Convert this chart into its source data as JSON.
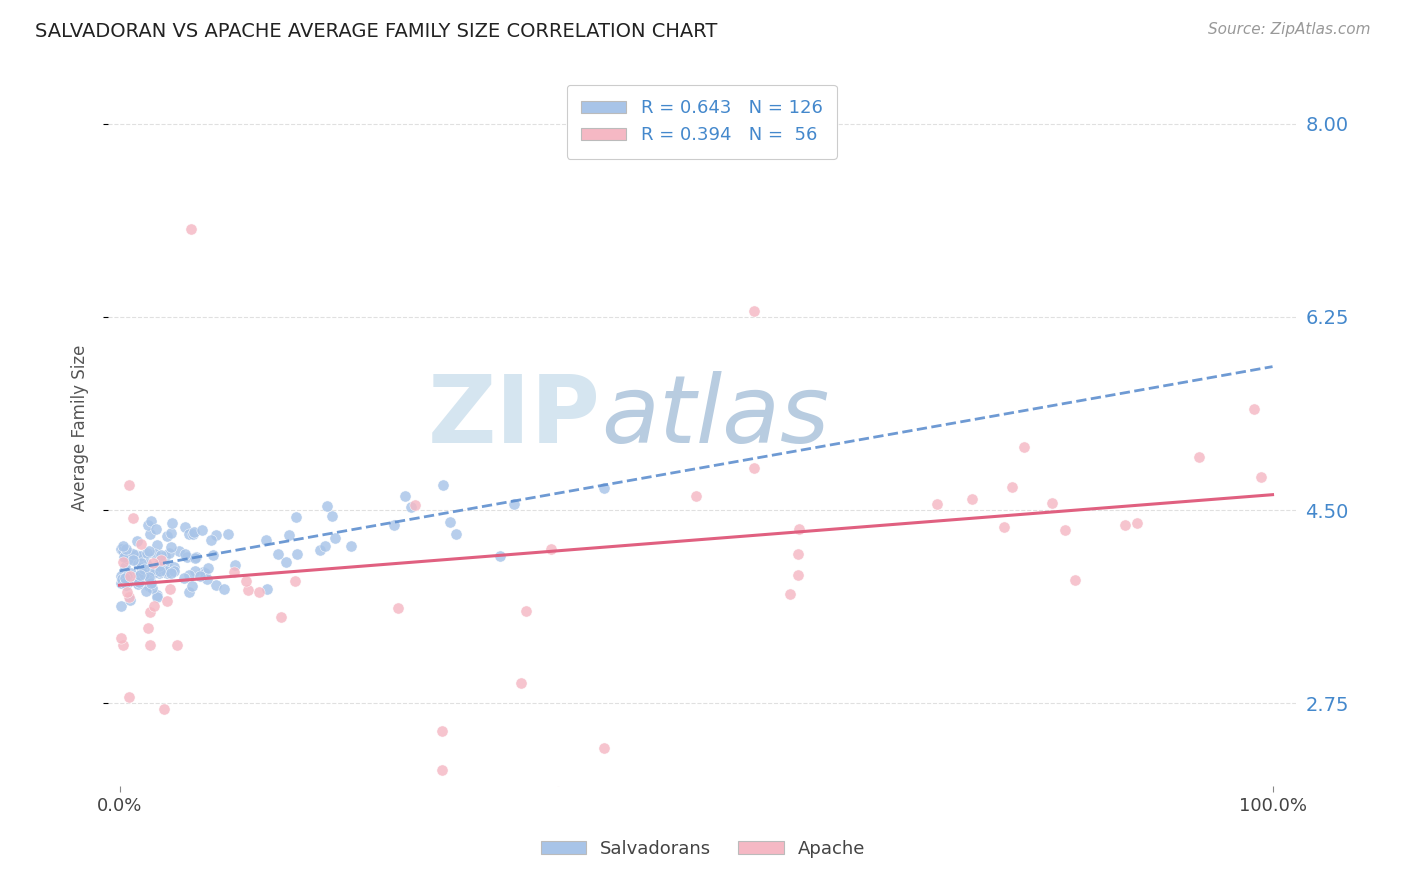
{
  "title": "SALVADORAN VS APACHE AVERAGE FAMILY SIZE CORRELATION CHART",
  "source_text": "Source: ZipAtlas.com",
  "ylabel": "Average Family Size",
  "y_ticks_right": [
    2.75,
    4.5,
    6.25,
    8.0
  ],
  "y_tick_labels": [
    "2.75",
    "4.50",
    "6.25",
    "8.00"
  ],
  "xlim": [
    -0.01,
    1.02
  ],
  "ylim": [
    2.0,
    8.5
  ],
  "legend_entry1": "R = 0.643   N = 126",
  "legend_entry2": "R = 0.394   N =  56",
  "salvadoran_color": "#a8c4e8",
  "apache_color": "#f5b8c4",
  "trend_salvadoran_color": "#5588cc",
  "trend_apache_color": "#e06080",
  "right_axis_color": "#4488cc",
  "title_color": "#222222",
  "watermark_zip": "ZIP",
  "watermark_atlas": "atlas",
  "watermark_color_zip": "#d5e5f0",
  "watermark_color_atlas": "#b8cce0",
  "background_color": "#ffffff",
  "grid_color": "#cccccc",
  "salv_trend_a": 3.95,
  "salv_trend_b": 1.85,
  "apache_trend_a": 3.82,
  "apache_trend_b": 0.82
}
